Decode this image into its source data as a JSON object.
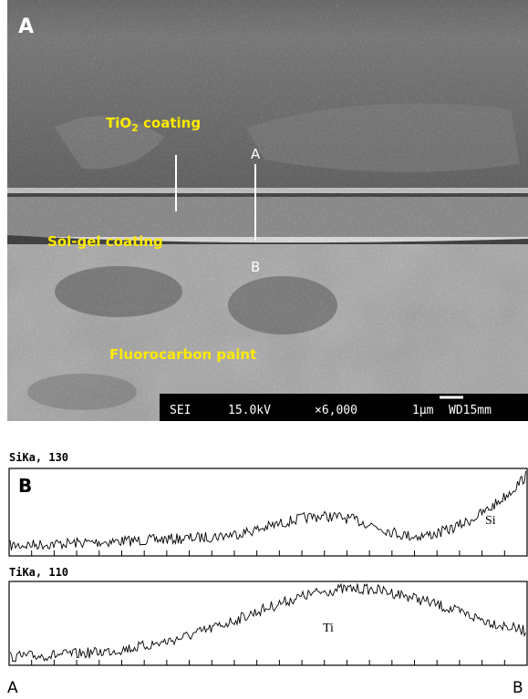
{
  "figure": {
    "panel_a": {
      "label": "A",
      "tio2": {
        "main": "TiO",
        "sub": "2",
        "rest": " coating"
      },
      "marker_start": "A",
      "marker_end": "B",
      "sol_gel": "Sol-gel coating",
      "fluorocarbon": "Fluorocarbon paint",
      "info": {
        "mode": "SEI",
        "voltage": "15.0kV",
        "magnification": "×6,000",
        "scale": "1μm",
        "wd": "WD15mm"
      }
    },
    "panel_b": {
      "label": "B",
      "si": {
        "header": "SiKa, 130",
        "label": "Si"
      },
      "ti": {
        "header": "TiKa, 110",
        "label": "Ti"
      },
      "start": "A",
      "end": "B"
    }
  }
}
